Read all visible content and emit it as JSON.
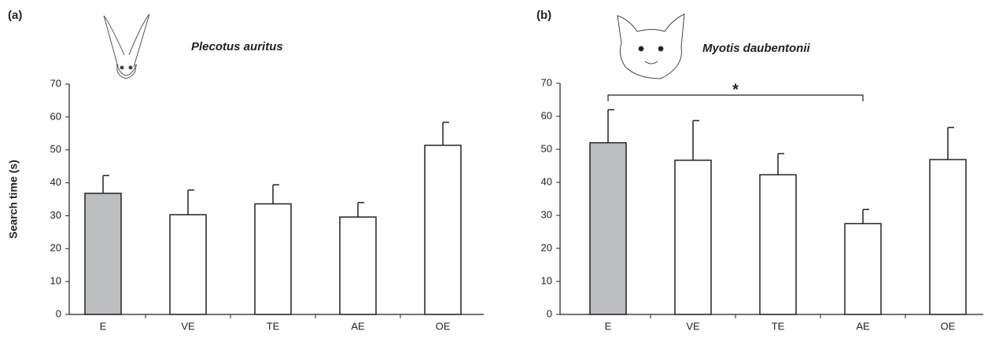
{
  "chart_data": [
    {
      "type": "bar",
      "panel_label": "(a)",
      "title": "Plecotus auritus",
      "ylabel": "Search time (s)",
      "categories": [
        "E",
        "VE",
        "TE",
        "AE",
        "OE"
      ],
      "values": [
        36.8,
        30.3,
        33.6,
        29.6,
        51.4
      ],
      "errors": [
        5.4,
        7.5,
        5.8,
        4.4,
        7.0
      ],
      "colors": [
        "#bcbec0",
        "#ffffff",
        "#ffffff",
        "#ffffff",
        "#ffffff"
      ],
      "ylim": [
        0,
        70
      ],
      "yticks": [
        0,
        10,
        20,
        30,
        40,
        50,
        60,
        70
      ]
    },
    {
      "type": "bar",
      "panel_label": "(b)",
      "title": "Myotis daubentonii",
      "significance": "*",
      "categories": [
        "E",
        "VE",
        "TE",
        "AE",
        "OE"
      ],
      "values": [
        52.0,
        46.7,
        42.3,
        27.5,
        46.9
      ],
      "errors": [
        10.0,
        12.0,
        6.4,
        4.3,
        9.7
      ],
      "colors": [
        "#bcbec0",
        "#ffffff",
        "#ffffff",
        "#ffffff",
        "#ffffff"
      ],
      "ylim": [
        0,
        70
      ],
      "yticks": [
        0,
        10,
        20,
        30,
        40,
        50,
        60,
        70
      ]
    }
  ]
}
